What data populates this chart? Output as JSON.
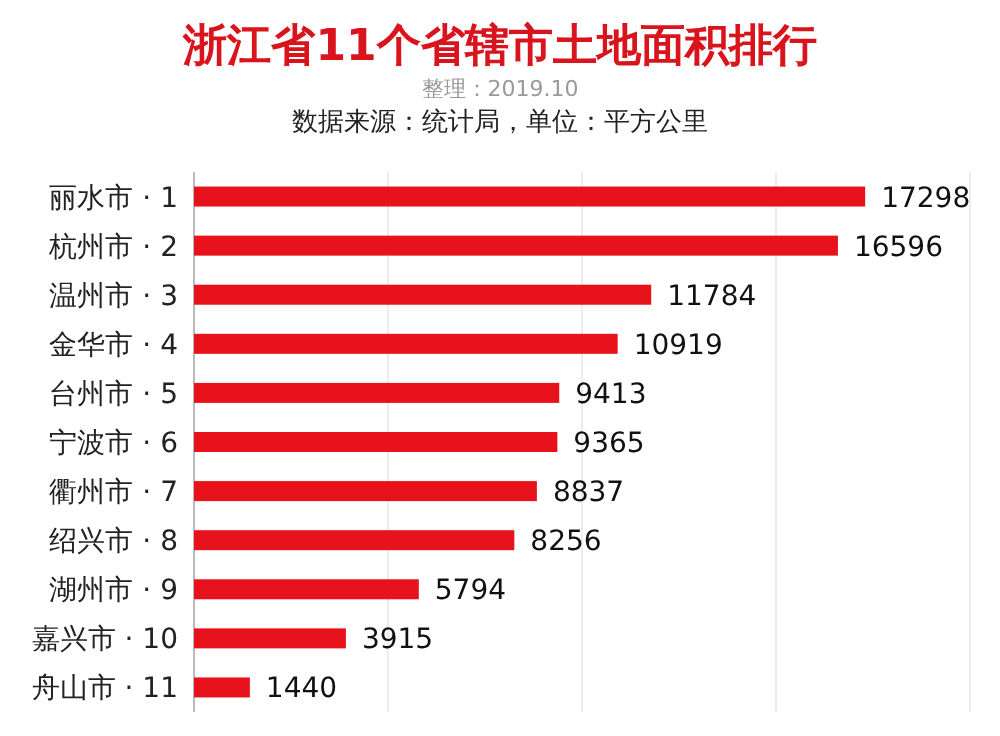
{
  "chart_data": {
    "type": "bar",
    "orientation": "horizontal",
    "title": "浙江省11个省辖市土地面积排行",
    "subtitle": "整理：2019.10",
    "annotations": [
      "数据来源：统计局，单位：平方公里"
    ],
    "categories": [
      "丽水市 · 1",
      "杭州市 · 2",
      "温州市 · 3",
      "金华市 · 4",
      "台州市 · 5",
      "宁波市 · 6",
      "衢州市 · 7",
      "绍兴市 · 8",
      "湖州市 · 9",
      "嘉兴市 · 10",
      "舟山市 · 11"
    ],
    "values": [
      17298,
      16596,
      11784,
      10919,
      9413,
      9365,
      8837,
      8256,
      5794,
      3915,
      1440
    ],
    "color": "#e8121c",
    "data_labels": true,
    "grid": "x",
    "xlim": [
      0,
      20000
    ],
    "xticks": [
      {
        "value": 0,
        "label": null
      },
      {
        "value": 5000,
        "label": null
      },
      {
        "value": 10000,
        "label": null
      },
      {
        "value": 15000,
        "label": null
      },
      {
        "value": 20000,
        "label": null
      }
    ],
    "tick_labels": "y"
  }
}
